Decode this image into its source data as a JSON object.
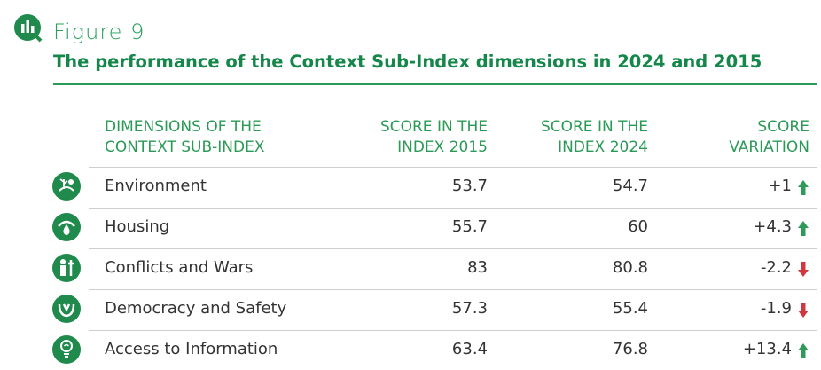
{
  "header": {
    "figure": "Figure 9",
    "title": "The performance of the Context Sub-Index dimensions in 2024 and 2015"
  },
  "table": {
    "columns": [
      "DIMENSIONS OF THE\nCONTEXT SUB-INDEX",
      "SCORE IN THE\nINDEX 2015",
      "SCORE IN THE\nINDEX 2024",
      "SCORE\nVARIATION"
    ],
    "rows": [
      [
        "Environment",
        53.7,
        54.7,
        "+1"
      ],
      [
        "Housing",
        55.7,
        60,
        "+4.3"
      ],
      [
        "Conflicts and Wars",
        83,
        80.8,
        "-2.2"
      ],
      [
        "Democracy and Safety",
        57.3,
        55.4,
        "-1.9"
      ],
      [
        "Access to Information",
        63.4,
        76.8,
        "+13.4"
      ]
    ],
    "trends": [
      "up",
      "up",
      "down",
      "down",
      "up"
    ],
    "colors": {
      "up": "#2e9a5a",
      "down": "#d2373f"
    }
  }
}
